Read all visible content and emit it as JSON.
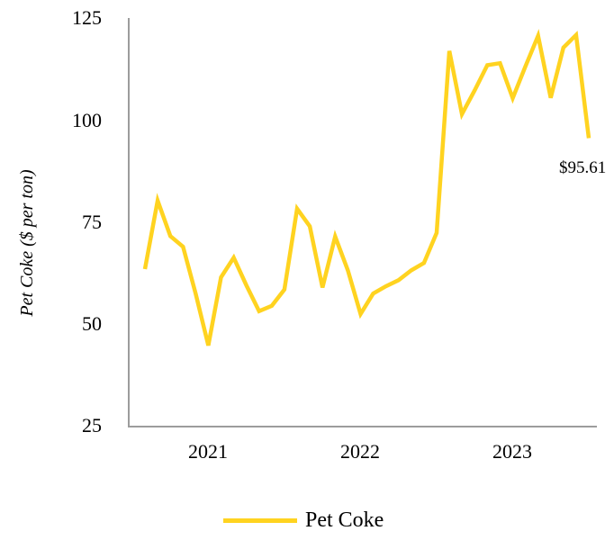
{
  "colors": {
    "line": "#FFD320",
    "axis": "#9C9C9C",
    "text": "#000000",
    "background": "#FFFFFF"
  },
  "chart_data": {
    "type": "line",
    "title": "",
    "xlabel": "",
    "ylabel": "Pet Coke ($ per ton)",
    "ylim": [
      25,
      125
    ],
    "yticks": [
      "125",
      "100",
      "75",
      "50",
      "25"
    ],
    "xticks": [
      "2021",
      "2022",
      "2023"
    ],
    "grid": false,
    "legend_position": "bottom",
    "annotation": {
      "text": "$95.61",
      "attached_to": "last-point"
    },
    "x": [
      "Aug-20",
      "Sep-20",
      "Oct-20",
      "Nov-20",
      "Dec-20",
      "Jan-21",
      "Feb-21",
      "Mar-21",
      "Apr-21",
      "May-21",
      "Jun-21",
      "Jul-21",
      "Aug-21",
      "Sep-21",
      "Oct-21",
      "Nov-21",
      "Dec-21",
      "Jan-22",
      "Feb-22",
      "Mar-22",
      "Apr-22",
      "May-22",
      "Jun-22",
      "Jul-22",
      "Aug-22",
      "Sep-22",
      "Oct-22",
      "Nov-22",
      "Dec-22",
      "Jan-23",
      "Feb-23",
      "Mar-23",
      "Apr-23",
      "May-23",
      "Jun-23",
      "Jul-23"
    ],
    "series": [
      {
        "name": "Pet Coke",
        "color": "#FFD320",
        "values": [
          63.5,
          80.3,
          71.6,
          69.0,
          57.5,
          44.8,
          61.5,
          66.3,
          59.5,
          53.2,
          54.5,
          58.5,
          78.3,
          74.0,
          59.0,
          71.5,
          63.2,
          52.5,
          57.5,
          59.3,
          60.8,
          63.2,
          65.0,
          72.4,
          117.0,
          101.5,
          107.3,
          113.5,
          114.0,
          105.4,
          113.2,
          120.7,
          105.5,
          117.8,
          120.9,
          95.61
        ]
      }
    ]
  },
  "legend": {
    "items": [
      {
        "label": "Pet Coke",
        "color": "#FFD320"
      }
    ]
  }
}
